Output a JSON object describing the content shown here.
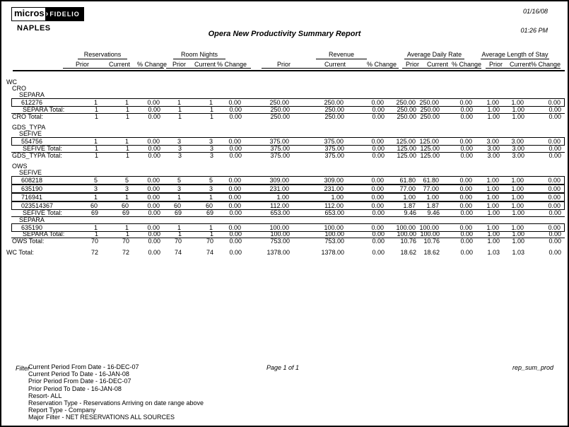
{
  "colors": {
    "text": "#000000",
    "background": "#ffffff"
  },
  "header": {
    "logo_micros": "micros",
    "logo_fidelio": "FIDELIO",
    "property": "NAPLES",
    "date": "01/16/08",
    "time": "01:26 PM",
    "title": "Opera New Productivity Summary Report"
  },
  "table": {
    "column_groups": [
      {
        "label": "Reservations"
      },
      {
        "label": "Room Nights"
      },
      {
        "label": "Revenue"
      },
      {
        "label": "Average Daily Rate"
      },
      {
        "label": "Average Length of Stay"
      }
    ],
    "sub_headers": [
      "Prior",
      "Current",
      "% Change"
    ],
    "rows": [
      {
        "type": "label",
        "indent": 0,
        "label": "WC"
      },
      {
        "type": "label",
        "indent": 1,
        "label": "CRO"
      },
      {
        "type": "label",
        "indent": 2,
        "label": "SEPARA"
      },
      {
        "type": "detail",
        "label": "612276",
        "values": [
          "1",
          "1",
          "0.00",
          "1",
          "1",
          "0.00",
          "250.00",
          "250.00",
          "0.00",
          "250.00",
          "250.00",
          "0.00",
          "1.00",
          "1.00",
          "0.00"
        ]
      },
      {
        "type": "subtotal",
        "label": "SEPARA Total:",
        "values": [
          "1",
          "1",
          "0.00",
          "1",
          "1",
          "0.00",
          "250.00",
          "250.00",
          "0.00",
          "250.00",
          "250.00",
          "0.00",
          "1.00",
          "1.00",
          "0.00"
        ]
      },
      {
        "type": "total",
        "indent": 1,
        "label": "CRO Total:",
        "values": [
          "1",
          "1",
          "0.00",
          "1",
          "1",
          "0.00",
          "250.00",
          "250.00",
          "0.00",
          "250.00",
          "250.00",
          "0.00",
          "1.00",
          "1.00",
          "0.00"
        ]
      },
      {
        "type": "spacer"
      },
      {
        "type": "label",
        "indent": 1,
        "label": "GDS_TYPA"
      },
      {
        "type": "label",
        "indent": 2,
        "label": "SEFIVE"
      },
      {
        "type": "detail",
        "label": "554756",
        "values": [
          "1",
          "1",
          "0.00",
          "3",
          "3",
          "0.00",
          "375.00",
          "375.00",
          "0.00",
          "125.00",
          "125.00",
          "0.00",
          "3.00",
          "3.00",
          "0.00"
        ]
      },
      {
        "type": "subtotal",
        "label": "SEFIVE Total:",
        "values": [
          "1",
          "1",
          "0.00",
          "3",
          "3",
          "0.00",
          "375.00",
          "375.00",
          "0.00",
          "125.00",
          "125.00",
          "0.00",
          "3.00",
          "3.00",
          "0.00"
        ]
      },
      {
        "type": "total",
        "indent": 1,
        "label": "GDS_TYPA Total:",
        "values": [
          "1",
          "1",
          "0.00",
          "3",
          "3",
          "0.00",
          "375.00",
          "375.00",
          "0.00",
          "125.00",
          "125.00",
          "0.00",
          "3.00",
          "3.00",
          "0.00"
        ]
      },
      {
        "type": "spacer"
      },
      {
        "type": "label",
        "indent": 1,
        "label": "OWS"
      },
      {
        "type": "label",
        "indent": 2,
        "label": "SEFIVE"
      },
      {
        "type": "detail",
        "label": "608218",
        "values": [
          "5",
          "5",
          "0.00",
          "5",
          "5",
          "0.00",
          "309.00",
          "309.00",
          "0.00",
          "61.80",
          "61.80",
          "0.00",
          "1.00",
          "1.00",
          "0.00"
        ]
      },
      {
        "type": "detail",
        "label": "635190",
        "values": [
          "3",
          "3",
          "0.00",
          "3",
          "3",
          "0.00",
          "231.00",
          "231.00",
          "0.00",
          "77.00",
          "77.00",
          "0.00",
          "1.00",
          "1.00",
          "0.00"
        ]
      },
      {
        "type": "detail",
        "label": "716941",
        "values": [
          "1",
          "1",
          "0.00",
          "1",
          "1",
          "0.00",
          "1.00",
          "1.00",
          "0.00",
          "1.00",
          "1.00",
          "0.00",
          "1.00",
          "1.00",
          "0.00"
        ]
      },
      {
        "type": "detail",
        "label": "023514367",
        "values": [
          "60",
          "60",
          "0.00",
          "60",
          "60",
          "0.00",
          "112.00",
          "112.00",
          "0.00",
          "1.87",
          "1.87",
          "0.00",
          "1.00",
          "1.00",
          "0.00"
        ]
      },
      {
        "type": "subtotal",
        "label": "SEFIVE Total:",
        "values": [
          "69",
          "69",
          "0.00",
          "69",
          "69",
          "0.00",
          "653.00",
          "653.00",
          "0.00",
          "9.46",
          "9.46",
          "0.00",
          "1.00",
          "1.00",
          "0.00"
        ]
      },
      {
        "type": "label",
        "indent": 2,
        "label": "SEPARA"
      },
      {
        "type": "detail",
        "label": "635190",
        "values": [
          "1",
          "1",
          "0.00",
          "1",
          "1",
          "0.00",
          "100.00",
          "100.00",
          "0.00",
          "100.00",
          "100.00",
          "0.00",
          "1.00",
          "1.00",
          "0.00"
        ]
      },
      {
        "type": "subtotal",
        "label": "SEPARA Total:",
        "values": [
          "1",
          "1",
          "0.00",
          "1",
          "1",
          "0.00",
          "100.00",
          "100.00",
          "0.00",
          "100.00",
          "100.00",
          "0.00",
          "1.00",
          "1.00",
          "0.00"
        ]
      },
      {
        "type": "total",
        "indent": 1,
        "label": "OWS Total:",
        "values": [
          "70",
          "70",
          "0.00",
          "70",
          "70",
          "0.00",
          "753.00",
          "753.00",
          "0.00",
          "10.76",
          "10.76",
          "0.00",
          "1.00",
          "1.00",
          "0.00"
        ]
      },
      {
        "type": "spacer"
      },
      {
        "type": "total",
        "indent": 0,
        "label": "WC Total:",
        "values": [
          "72",
          "72",
          "0.00",
          "74",
          "74",
          "0.00",
          "1378.00",
          "1378.00",
          "0.00",
          "18.62",
          "18.62",
          "0.00",
          "1.03",
          "1.03",
          "0.00"
        ]
      }
    ]
  },
  "footer": {
    "filter_label": "Filter",
    "filters": [
      "Current Period From Date -  16-DEC-07",
      "Current Period To Date -  16-JAN-08",
      "Prior Period From Date -  16-DEC-07",
      "Prior Period To Date -  16-JAN-08",
      "Resort-  ALL",
      "Reservation Type -  Reservations Arriving on date range above",
      "Report Type -  Company",
      "Major Filter -  NET RESERVATIONS ALL SOURCES"
    ],
    "page_info": "Page 1 of 1",
    "report_id": "rep_sum_prod"
  }
}
